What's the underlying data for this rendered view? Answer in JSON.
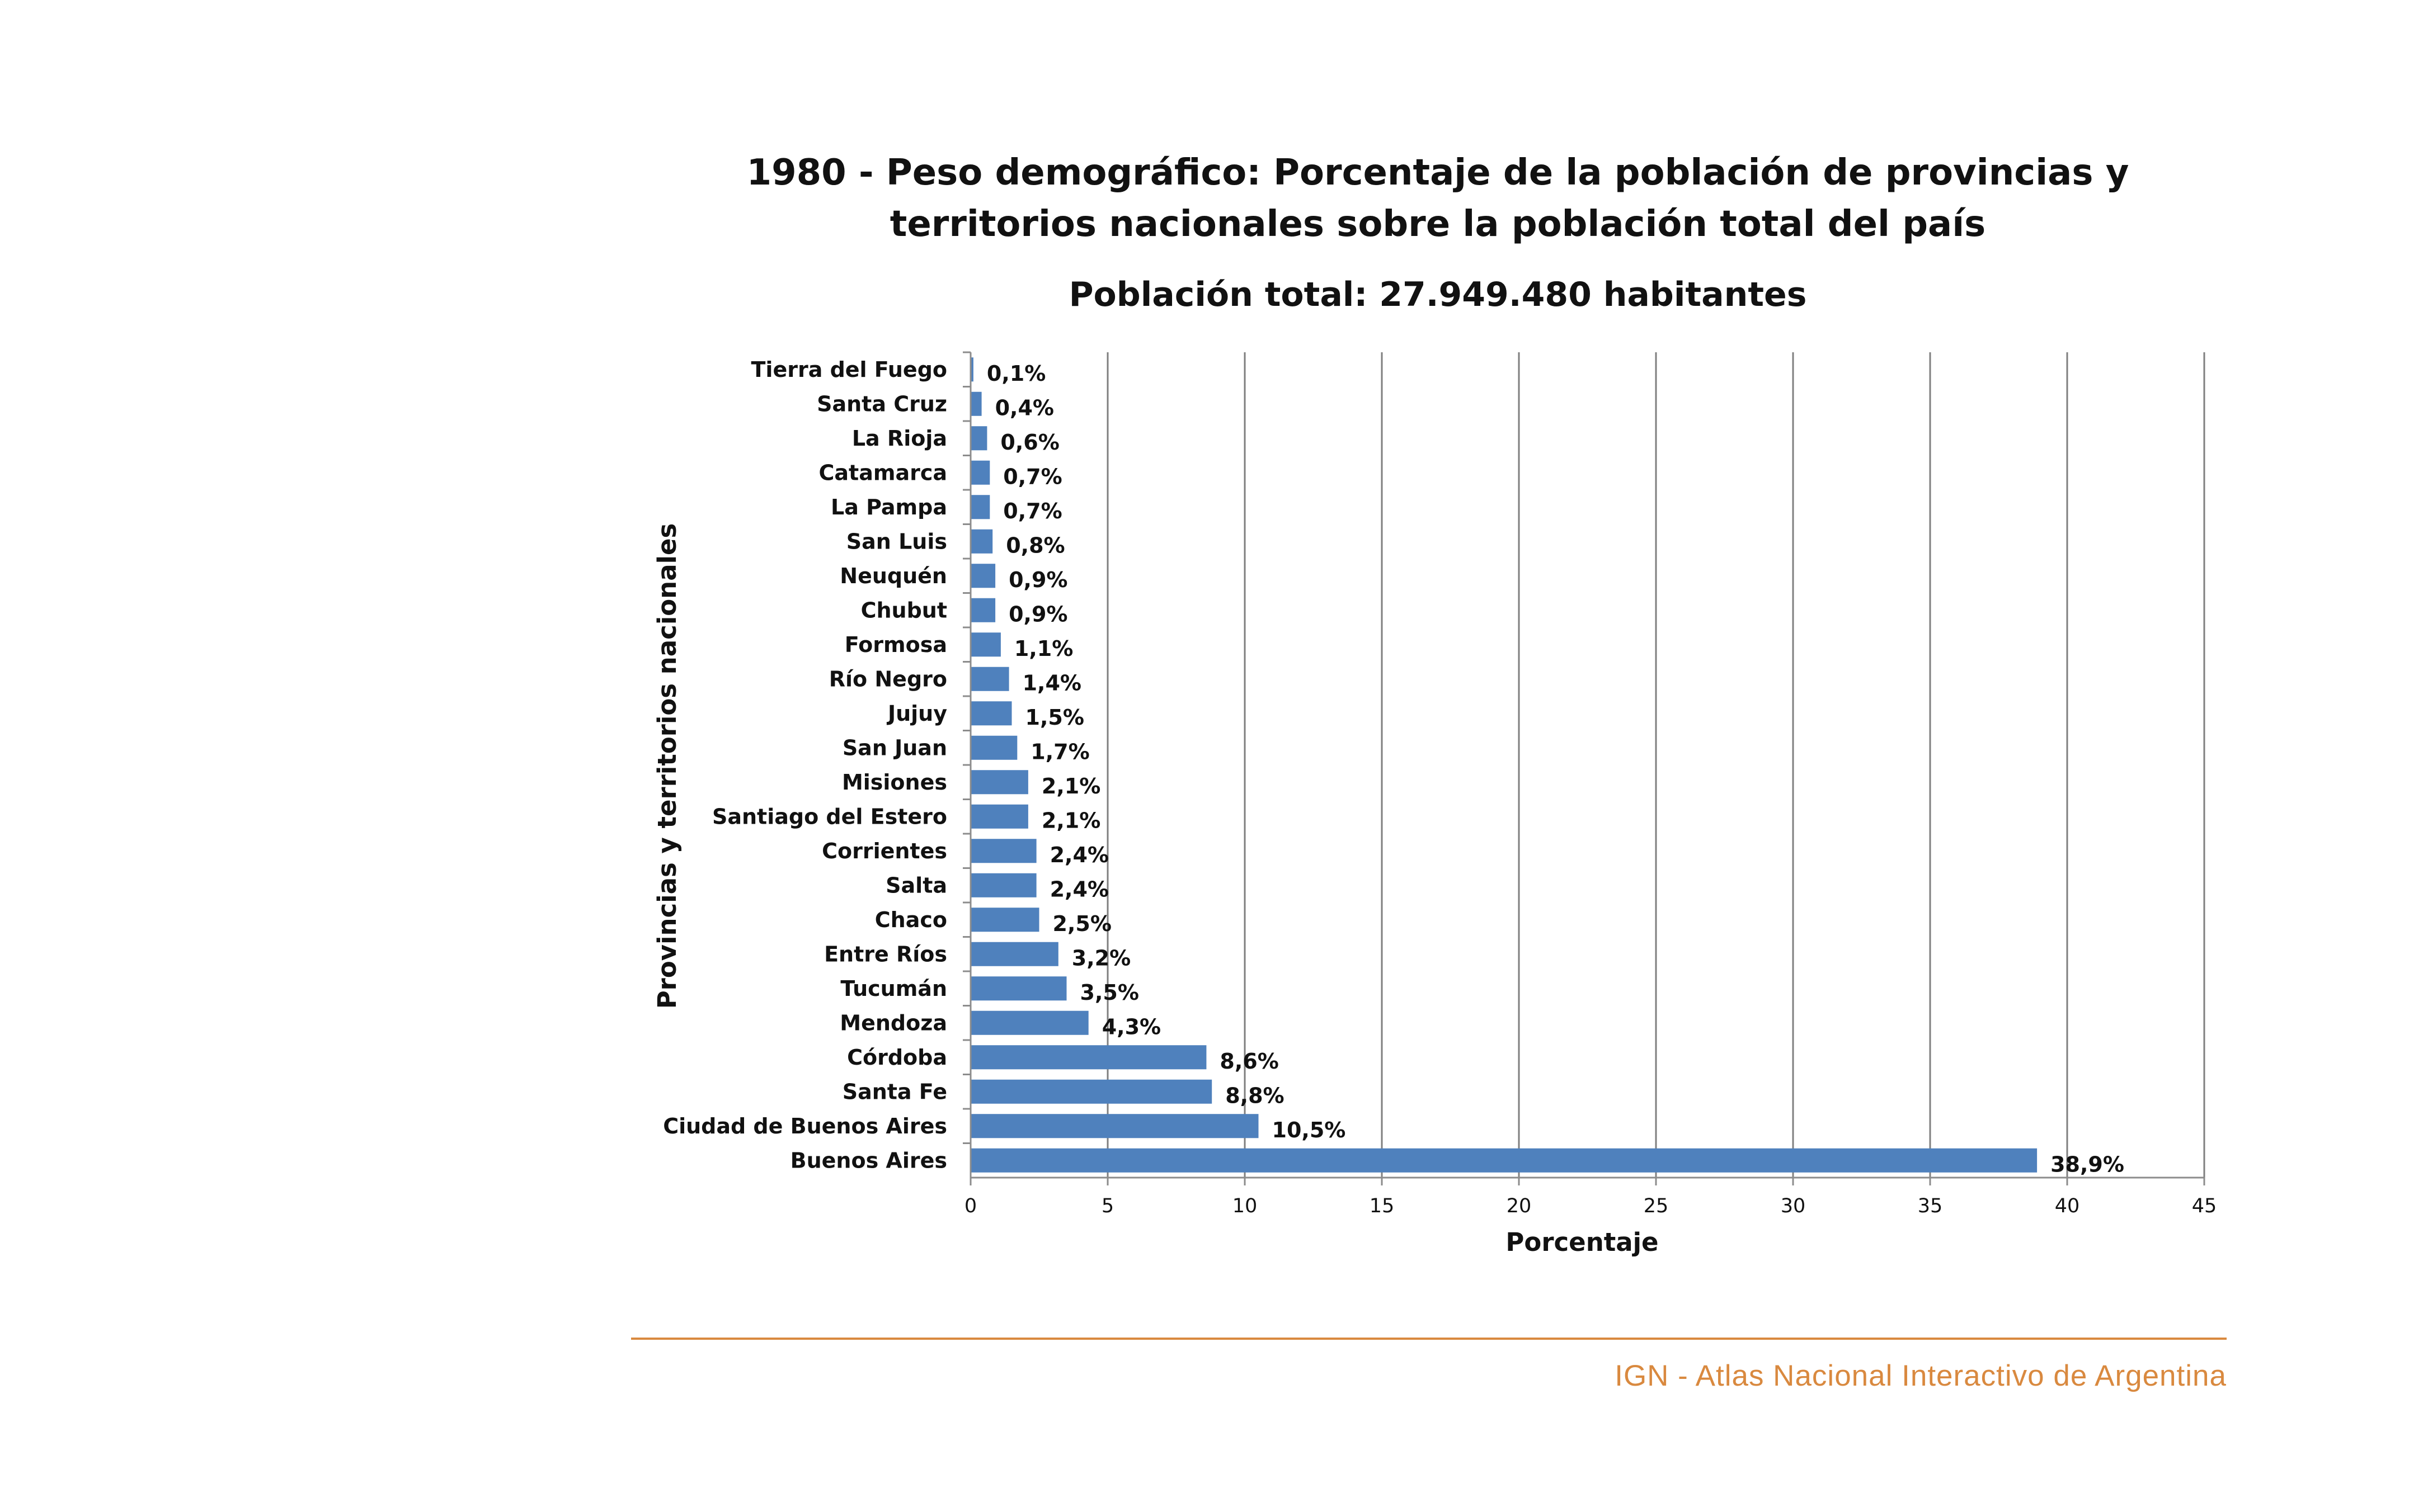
{
  "chart_data": {
    "type": "bar",
    "orientation": "horizontal",
    "title": "1980 - Peso demográfico: Porcentaje de la población de provincias y territorios nacionales sobre la población total del país",
    "title_lines": [
      "1980 - Peso demográfico: Porcentaje de la población de provincias y",
      "territorios nacionales sobre la población total del país"
    ],
    "subtitle": "Población total: 27.949.480 habitantes",
    "xlabel": "Porcentaje",
    "ylabel": "Provincias y territorios nacionales",
    "xlim": [
      0,
      45
    ],
    "x_ticks": [
      0,
      5,
      10,
      15,
      20,
      25,
      30,
      35,
      40,
      45
    ],
    "grid": "vertical",
    "legend": "none",
    "bar_color": "#4f81bd",
    "categories": [
      "Tierra del Fuego",
      "Santa Cruz",
      "La Rioja",
      "Catamarca",
      "La Pampa",
      "San Luis",
      "Neuquén",
      "Chubut",
      "Formosa",
      "Río Negro",
      "Jujuy",
      "San Juan",
      "Misiones",
      "Santiago del Estero",
      "Corrientes",
      "Salta",
      "Chaco",
      "Entre Ríos",
      "Tucumán",
      "Mendoza",
      "Córdoba",
      "Santa Fe",
      "Ciudad de Buenos Aires",
      "Buenos Aires"
    ],
    "values": [
      0.1,
      0.4,
      0.6,
      0.7,
      0.7,
      0.8,
      0.9,
      0.9,
      1.1,
      1.4,
      1.5,
      1.7,
      2.1,
      2.1,
      2.4,
      2.4,
      2.5,
      3.2,
      3.5,
      4.3,
      8.6,
      8.8,
      10.5,
      38.9
    ],
    "value_labels": [
      "0,1%",
      "0,4%",
      "0,6%",
      "0,7%",
      "0,7%",
      "0,8%",
      "0,9%",
      "0,9%",
      "1,1%",
      "1,4%",
      "1,5%",
      "1,7%",
      "2,1%",
      "2,1%",
      "2,4%",
      "2,4%",
      "2,5%",
      "3,2%",
      "3,5%",
      "4,3%",
      "8,6%",
      "8,8%",
      "10,5%",
      "38,9%"
    ]
  },
  "footer": {
    "source": "IGN - Atlas Nacional Interactivo de Argentina",
    "line_color": "#d9893f"
  }
}
